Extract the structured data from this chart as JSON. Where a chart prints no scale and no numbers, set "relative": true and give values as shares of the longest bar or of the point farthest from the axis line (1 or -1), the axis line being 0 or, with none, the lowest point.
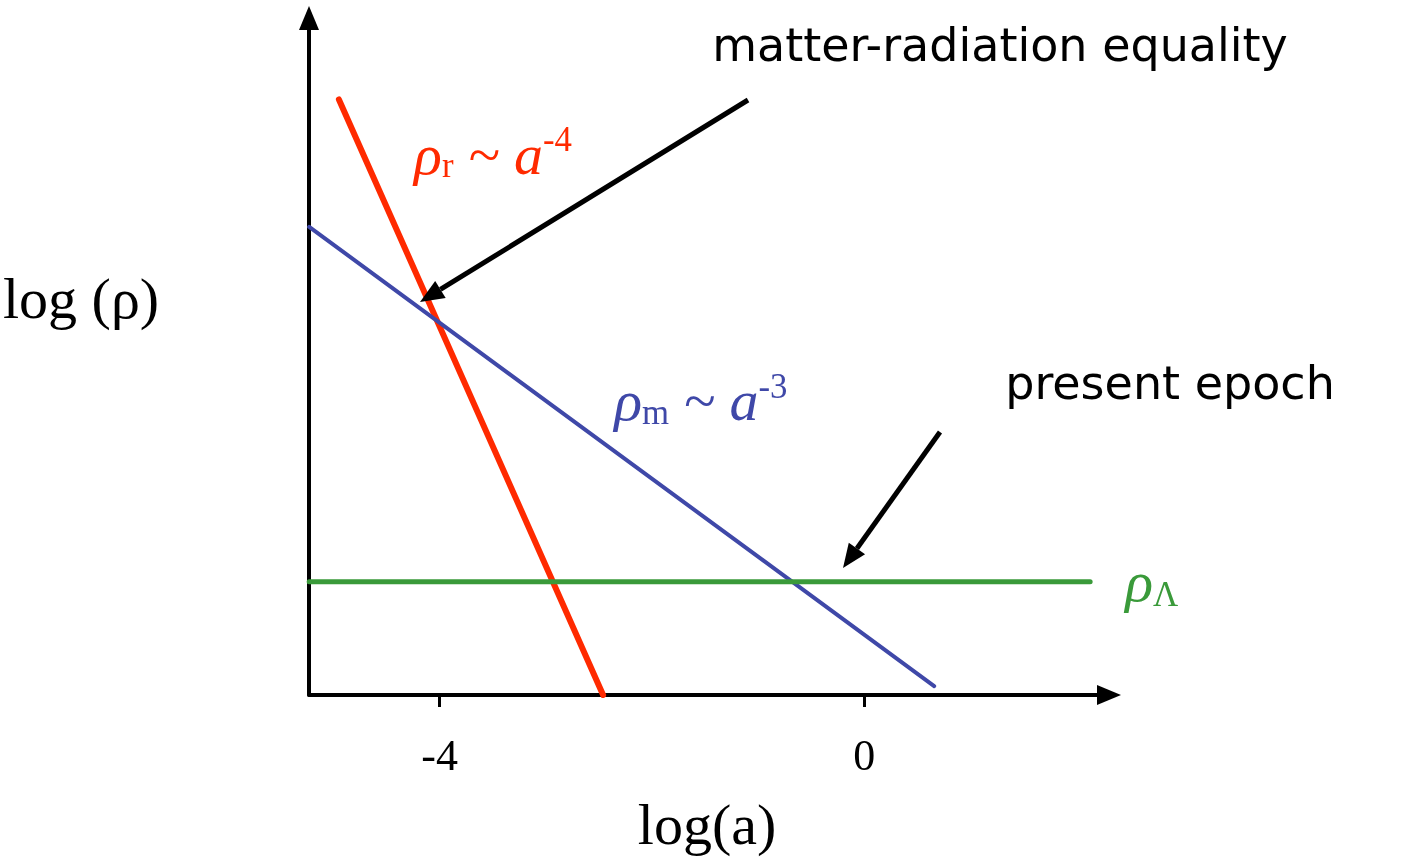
{
  "chart_data": {
    "type": "line",
    "relative": true,
    "xlabel": "log(a)",
    "ylabel": "log (ρ)",
    "xlim": [
      -5.23,
      2.27
    ],
    "xticks": [
      -4,
      0
    ],
    "tick_labels": "x",
    "grid": false,
    "legend": false,
    "marker": "none",
    "line_style": "solid",
    "series": [
      {
        "name": "ρ$_{r}$ ~ a$^{-4}$",
        "color": "#ff2a00",
        "x": [
          -4.95,
          -2.46
        ],
        "values": [
          1,
          0
        ]
      },
      {
        "name": "ρ$_{m}$ ~ a$^{-3}$",
        "color": "#3f48a8",
        "x": [
          -5.23,
          0.66
        ],
        "values": [
          0.786,
          0.015
        ]
      },
      {
        "name": "ρ$_{Λ}$",
        "color": "#3a9a3a",
        "x": [
          -5.23,
          2.13
        ],
        "values": [
          0.19,
          0.19
        ]
      }
    ],
    "annotations": [
      "matter-radiation equality",
      "present epoch"
    ]
  }
}
